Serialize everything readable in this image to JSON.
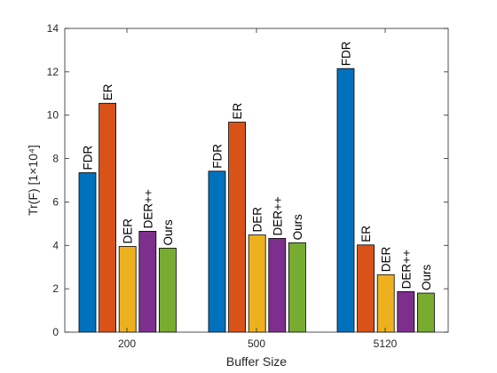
{
  "chart_data": {
    "type": "bar",
    "xlabel": "Buffer Size",
    "ylabel": "Tr(F) [1×10⁴]",
    "ylim": [
      0,
      14
    ],
    "yticks": [
      "0",
      "2",
      "4",
      "6",
      "8",
      "10",
      "12",
      "14"
    ],
    "grid": false,
    "legend": "none (labels above bars)",
    "categories": [
      "200",
      "500",
      "5120"
    ],
    "series": [
      {
        "name": "FDR",
        "color": "#0072BD",
        "values": [
          7.35,
          7.42,
          12.15
        ]
      },
      {
        "name": "ER",
        "color": "#D95319",
        "values": [
          10.55,
          9.68,
          4.02
        ]
      },
      {
        "name": "DER",
        "color": "#EDB120",
        "values": [
          3.95,
          4.48,
          2.65
        ]
      },
      {
        "name": "DER++",
        "color": "#7E2F8E",
        "values": [
          4.65,
          4.32,
          1.87
        ]
      },
      {
        "name": "Ours",
        "color": "#77AC30",
        "values": [
          3.87,
          4.12,
          1.8
        ]
      }
    ]
  }
}
